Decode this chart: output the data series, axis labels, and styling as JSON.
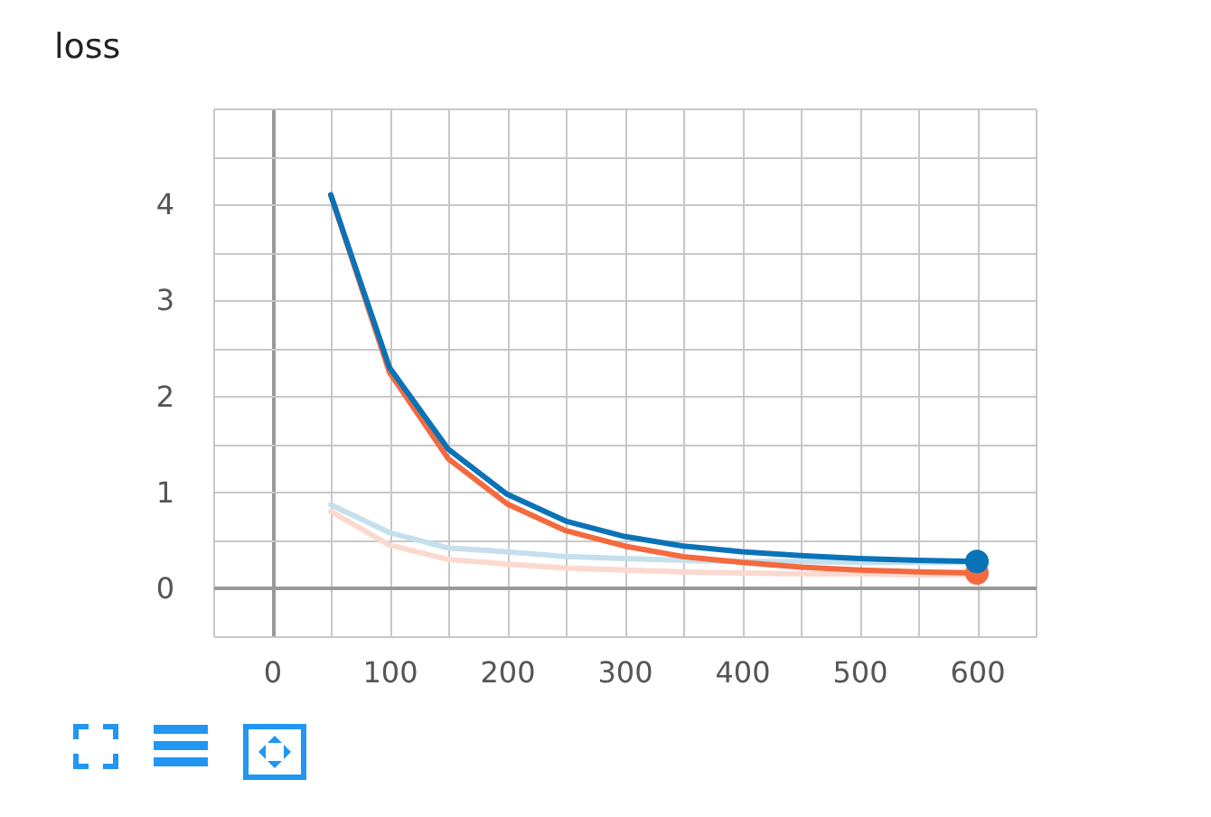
{
  "chart_data": {
    "type": "line",
    "title": "loss",
    "x": [
      50,
      100,
      150,
      200,
      250,
      300,
      350,
      400,
      450,
      500,
      550,
      600
    ],
    "series": [
      {
        "color": "#c6dfec",
        "values": [
          0.87,
          0.58,
          0.42,
          0.38,
          0.33,
          0.31,
          0.29,
          0.28,
          0.28,
          0.27,
          0.27,
          0.27
        ]
      },
      {
        "color": "#fbd9cf",
        "values": [
          0.8,
          0.45,
          0.3,
          0.25,
          0.21,
          0.19,
          0.17,
          0.16,
          0.15,
          0.15,
          0.14,
          0.14
        ]
      },
      {
        "color": "#f4693e",
        "values": [
          4.1,
          2.25,
          1.35,
          0.88,
          0.6,
          0.44,
          0.33,
          0.27,
          0.22,
          0.19,
          0.17,
          0.16
        ]
      },
      {
        "color": "#0a73b8",
        "values": [
          4.1,
          2.3,
          1.45,
          0.98,
          0.7,
          0.54,
          0.44,
          0.38,
          0.34,
          0.31,
          0.29,
          0.28
        ]
      },
      {
        "type": "scatter",
        "color": "#f4693e",
        "x": [
          600
        ],
        "values": [
          0.16
        ]
      },
      {
        "type": "scatter",
        "color": "#0a73b8",
        "x": [
          600
        ],
        "values": [
          0.28
        ]
      }
    ],
    "xlim": [
      -50,
      650
    ],
    "xticks": [
      {
        "value": -50,
        "label": null
      },
      0,
      {
        "value": 50,
        "label": null
      },
      100,
      {
        "value": 150,
        "label": null
      },
      200,
      {
        "value": 250,
        "label": null
      },
      300,
      {
        "value": 350,
        "label": null
      },
      400,
      {
        "value": 450,
        "label": null
      },
      500,
      {
        "value": 550,
        "label": null
      },
      600,
      {
        "value": 650,
        "label": null
      }
    ],
    "ylim": [
      -0.5,
      5
    ],
    "yticks": [
      {
        "value": -0.5,
        "label": null
      },
      0,
      {
        "value": 0.5,
        "label": null
      },
      1,
      {
        "value": 1.5,
        "label": null
      },
      2,
      {
        "value": 2.5,
        "label": null
      },
      3,
      {
        "value": 3.5,
        "label": null
      },
      4,
      {
        "value": 4.5,
        "label": null
      },
      {
        "value": 5,
        "label": null
      }
    ],
    "grid": true
  }
}
